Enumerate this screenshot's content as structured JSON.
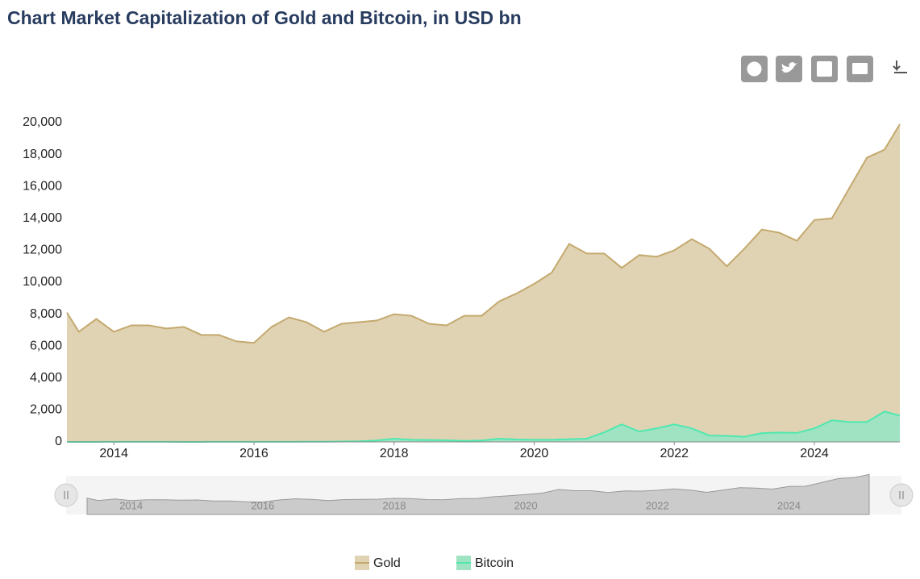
{
  "chart_data": {
    "type": "area",
    "title": "Chart Market Capitalization of Gold and Bitcoin, in USD bn",
    "x": [
      2013.33,
      2013.5,
      2013.75,
      2014.0,
      2014.25,
      2014.5,
      2014.75,
      2015.0,
      2015.25,
      2015.5,
      2015.75,
      2016.0,
      2016.25,
      2016.5,
      2016.75,
      2017.0,
      2017.25,
      2017.5,
      2017.75,
      2018.0,
      2018.25,
      2018.5,
      2018.75,
      2019.0,
      2019.25,
      2019.5,
      2019.75,
      2020.0,
      2020.25,
      2020.5,
      2020.75,
      2021.0,
      2021.25,
      2021.5,
      2021.75,
      2022.0,
      2022.25,
      2022.5,
      2022.75,
      2023.0,
      2023.25,
      2023.5,
      2023.75,
      2024.0,
      2024.25,
      2024.5,
      2024.75,
      2025.0,
      2025.22
    ],
    "series": [
      {
        "name": "Gold",
        "color": "#c4a96e",
        "fill": "#e0d3b3",
        "values": [
          8100,
          6900,
          7700,
          6900,
          7300,
          7300,
          7100,
          7200,
          6700,
          6700,
          6300,
          6200,
          7200,
          7800,
          7500,
          6900,
          7400,
          7500,
          7600,
          8000,
          7900,
          7400,
          7300,
          7900,
          7900,
          8800,
          9300,
          9900,
          10600,
          12400,
          11800,
          11800,
          10900,
          11700,
          11600,
          12000,
          12700,
          12100,
          11000,
          12100,
          13300,
          13100,
          12600,
          13900,
          14000,
          15900,
          17800,
          18300,
          19900
        ]
      },
      {
        "name": "Bitcoin",
        "color": "#4ee8b0",
        "fill": "#9fe3c2",
        "values": [
          1,
          2,
          3,
          7,
          6,
          8,
          5,
          3,
          3,
          4,
          4,
          6,
          7,
          9,
          10,
          15,
          25,
          40,
          90,
          200,
          130,
          120,
          100,
          65,
          90,
          200,
          150,
          130,
          130,
          170,
          200,
          600,
          1100,
          650,
          850,
          1100,
          850,
          400,
          380,
          320,
          550,
          590,
          560,
          850,
          1350,
          1250,
          1250,
          1900,
          1650
        ]
      }
    ],
    "xlim": [
      2013.33,
      2025.22
    ],
    "xticks": [
      2014,
      2016,
      2018,
      2020,
      2022,
      2024
    ],
    "ylim": [
      0,
      20000
    ],
    "yticks": [
      0,
      {
        "value": 2000,
        "label": "2,000"
      },
      {
        "value": 4000,
        "label": "4,000"
      },
      {
        "value": 6000,
        "label": "6,000"
      },
      {
        "value": 8000,
        "label": "8,000"
      },
      {
        "value": 10000,
        "label": "10,000"
      },
      {
        "value": 12000,
        "label": "12,000"
      },
      {
        "value": 14000,
        "label": "14,000"
      },
      {
        "value": 16000,
        "label": "16,000"
      },
      {
        "value": 18000,
        "label": "18,000"
      },
      {
        "value": 20000,
        "label": "20,000"
      }
    ],
    "grid": false,
    "legend": "bottom"
  }
}
